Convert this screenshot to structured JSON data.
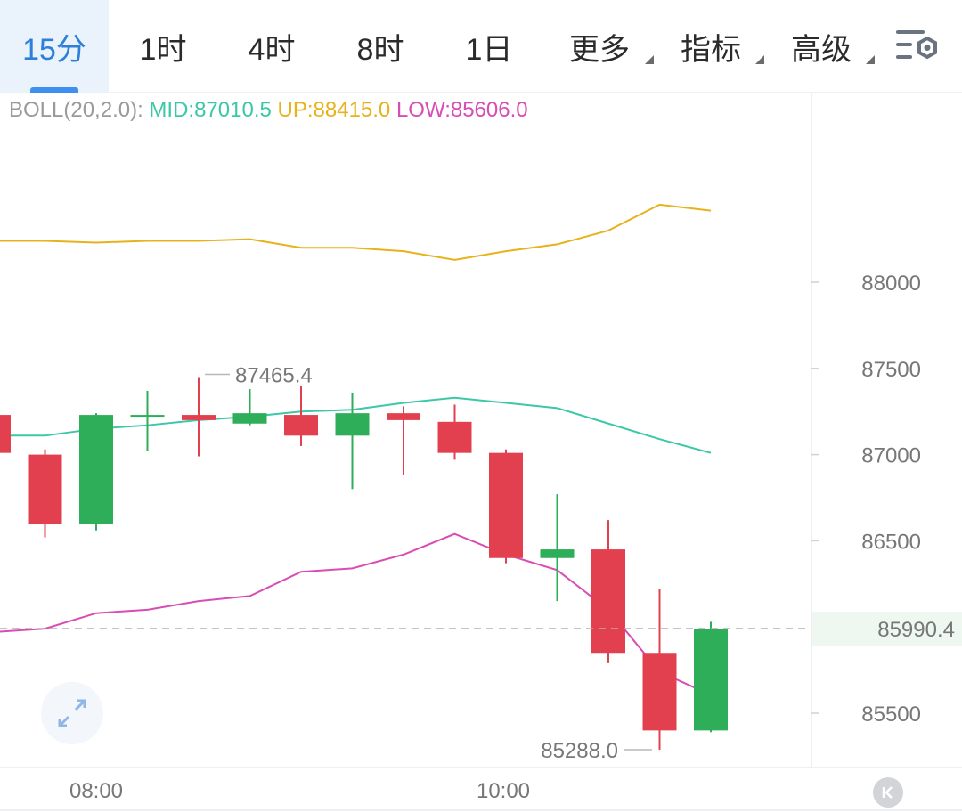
{
  "tabs": [
    {
      "label": "15分",
      "active": true
    },
    {
      "label": "1时"
    },
    {
      "label": "4时"
    },
    {
      "label": "8时"
    },
    {
      "label": "1日"
    },
    {
      "label": "更多",
      "dropdown": true
    },
    {
      "label": "指标",
      "dropdown": true
    },
    {
      "label": "高级",
      "dropdown": true
    }
  ],
  "settings_icon": "chart-settings-icon",
  "boll": {
    "name": "BOLL(20,2.0):",
    "mid": "MID:87010.5",
    "up": "UP:88415.0",
    "low": "LOW:85606.0"
  },
  "colors": {
    "up_candle": "#2fae5a",
    "down_candle": "#e2404f",
    "mid_line": "#3cc8a8",
    "upper_line": "#e8b21c",
    "lower_line": "#d84cb4",
    "accent": "#2e7fd9",
    "current_price": "#2fae5a"
  },
  "chart_data": {
    "type": "candlestick",
    "y_ticks": [
      "88000",
      "87500",
      "87000",
      "86500",
      "85500"
    ],
    "x_ticks": [
      "08:00",
      "10:00"
    ],
    "high_label": "87465.4",
    "low_label": "85288.0",
    "current_price": "85990.4",
    "candles": [
      {
        "open": 87230,
        "close": 87010,
        "high": 87240,
        "low": 87000
      },
      {
        "open": 87000,
        "close": 86600,
        "high": 87030,
        "low": 86520
      },
      {
        "open": 86600,
        "close": 87230,
        "high": 87240,
        "low": 86560
      },
      {
        "open": 87230,
        "close": 87230,
        "high": 87370,
        "low": 87020
      },
      {
        "open": 87230,
        "close": 87200,
        "high": 87450,
        "low": 86990
      },
      {
        "open": 87180,
        "close": 87240,
        "high": 87380,
        "low": 87170
      },
      {
        "open": 87230,
        "close": 87110,
        "high": 87400,
        "low": 87050
      },
      {
        "open": 87110,
        "close": 87240,
        "high": 87360,
        "low": 86800
      },
      {
        "open": 87240,
        "close": 87200,
        "high": 87280,
        "low": 86880
      },
      {
        "open": 87190,
        "close": 87010,
        "high": 87290,
        "low": 86970
      },
      {
        "open": 87010,
        "close": 86400,
        "high": 87030,
        "low": 86370
      },
      {
        "open": 86400,
        "close": 86450,
        "high": 86770,
        "low": 86150
      },
      {
        "open": 86450,
        "close": 85850,
        "high": 86620,
        "low": 85790
      },
      {
        "open": 85850,
        "close": 85400,
        "high": 86220,
        "low": 85288
      },
      {
        "open": 85400,
        "close": 85990,
        "high": 86030,
        "low": 85390
      }
    ],
    "upper_band": [
      88240,
      88240,
      88230,
      88240,
      88240,
      88250,
      88200,
      88200,
      88180,
      88130,
      88180,
      88220,
      88300,
      88450,
      88415
    ],
    "middle_band": [
      87110,
      87110,
      87150,
      87170,
      87200,
      87220,
      87250,
      87260,
      87300,
      87330,
      87300,
      87270,
      87180,
      87090,
      87010
    ],
    "lower_band": [
      85970,
      85990,
      86080,
      86100,
      86150,
      86180,
      86320,
      86340,
      86420,
      86540,
      86420,
      86330,
      86100,
      85740,
      85606
    ]
  }
}
